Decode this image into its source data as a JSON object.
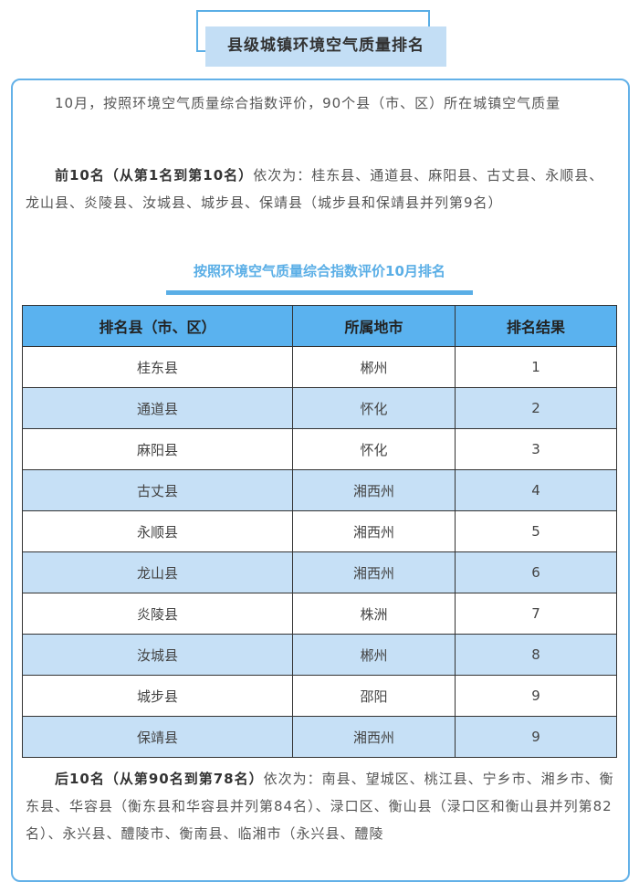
{
  "title": "县级城镇环境空气质量排名",
  "intro": "10月，按照环境空气质量综合指数评价，90个县（市、区）所在城镇空气质量",
  "top10": {
    "bold": "前10名（从第1名到第10名）",
    "text": "依次为：桂东县、通道县、麻阳县、古丈县、永顺县、龙山县、炎陵县、汝城县、城步县、保靖县（城步县和保靖县并列第9名）"
  },
  "table_title": "按照环境空气质量综合指数评价10月排名",
  "table": {
    "headers": [
      "排名县（市、区）",
      "所属地市",
      "排名结果"
    ],
    "rows": [
      [
        "桂东县",
        "郴州",
        "1"
      ],
      [
        "通道县",
        "怀化",
        "2"
      ],
      [
        "麻阳县",
        "怀化",
        "3"
      ],
      [
        "古丈县",
        "湘西州",
        "4"
      ],
      [
        "永顺县",
        "湘西州",
        "5"
      ],
      [
        "龙山县",
        "湘西州",
        "6"
      ],
      [
        "炎陵县",
        "株洲",
        "7"
      ],
      [
        "汝城县",
        "郴州",
        "8"
      ],
      [
        "城步县",
        "邵阳",
        "9"
      ],
      [
        "保靖县",
        "湘西州",
        "9"
      ]
    ]
  },
  "bottom10": {
    "bold": "后10名（从第90名到第78名）",
    "text": "依次为：南县、望城区、桃江县、宁乡市、湘乡市、衡东县、华容县（衡东县和华容县并列第84名）、渌口区、衡山县（渌口区和衡山县并列第82名）、永兴县、醴陵市、衡南县、临湘市（永兴县、醴陵"
  }
}
